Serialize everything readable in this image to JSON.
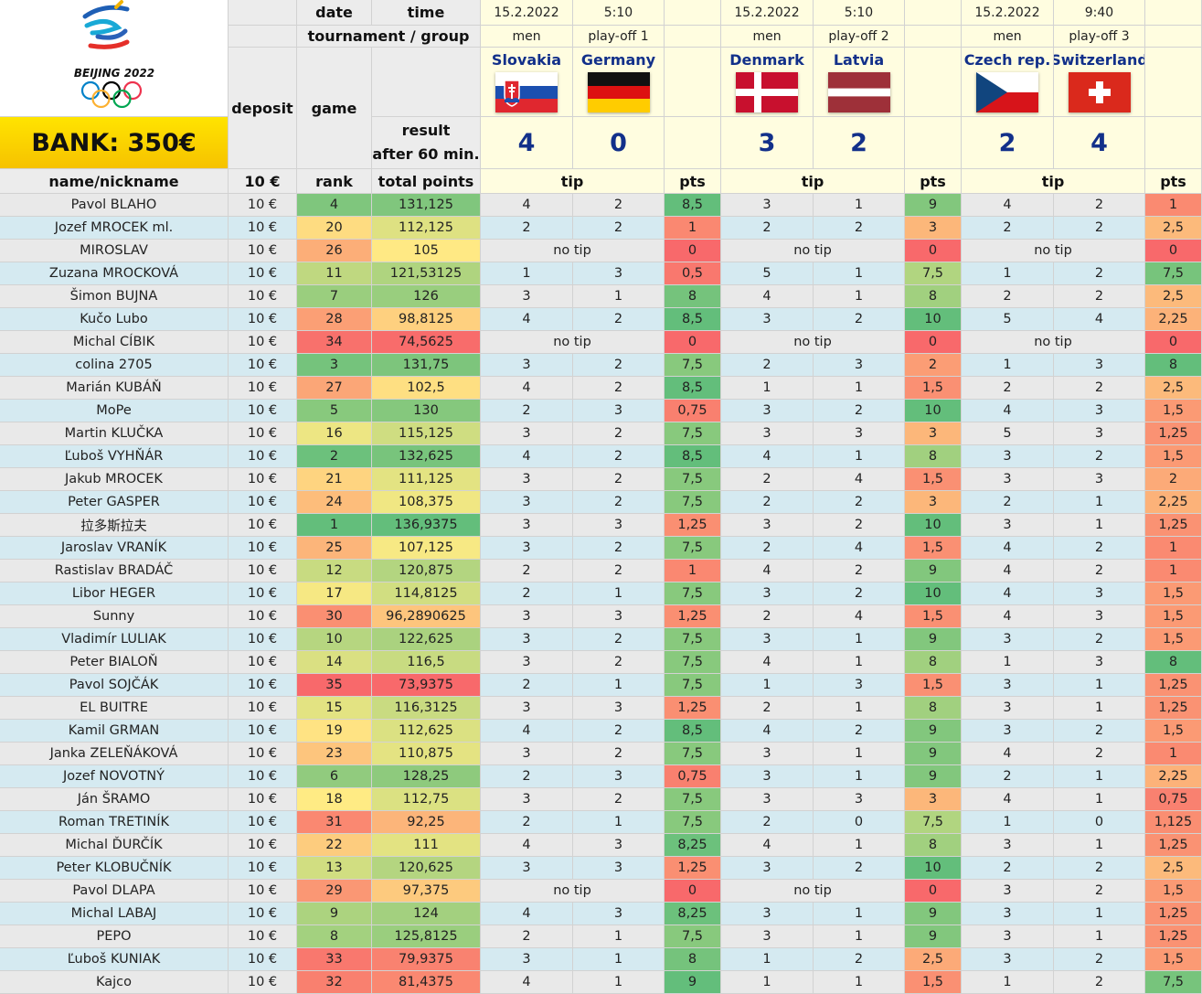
{
  "header": {
    "bank": "BANK: 350€",
    "date_label": "date",
    "time_label": "time",
    "tournament_label": "tournament / group",
    "deposit_label": "deposit",
    "game_label": "game",
    "result_label_1": "result",
    "result_label_2": "after 60 min.",
    "name_label": "name/nickname",
    "deposit_value": "10 €",
    "rank_label": "rank",
    "total_label": "total points",
    "tip_label": "tip",
    "pts_label": "pts"
  },
  "logo": {
    "name": "BEIJING 2022"
  },
  "matches": [
    {
      "date": "15.2.2022",
      "time": "5:10",
      "group": "men",
      "stage": "play-off 1",
      "team1": "Slovakia",
      "team2": "Germany",
      "score1": "4",
      "score2": "0"
    },
    {
      "date": "15.2.2022",
      "time": "5:10",
      "group": "men",
      "stage": "play-off 2",
      "team1": "Denmark",
      "team2": "Latvia",
      "score1": "3",
      "score2": "2"
    },
    {
      "date": "15.2.2022",
      "time": "9:40",
      "group": "men",
      "stage": "play-off 3",
      "team1": "Czech rep.",
      "team2": "Switzerland",
      "score1": "2",
      "score2": "4"
    }
  ],
  "no_tip": "no tip",
  "rows": [
    {
      "name": "Pavol BLAHO",
      "dep": "10 €",
      "rank": 4,
      "total": "131,125",
      "tips": [
        [
          "4",
          "2",
          "8,5"
        ],
        [
          "3",
          "1",
          "9"
        ],
        [
          "4",
          "2",
          "1"
        ]
      ]
    },
    {
      "name": "Jozef MROCEK ml.",
      "dep": "10 €",
      "rank": 20,
      "total": "112,125",
      "tips": [
        [
          "2",
          "2",
          "1"
        ],
        [
          "2",
          "2",
          "3"
        ],
        [
          "2",
          "2",
          "2,5"
        ]
      ]
    },
    {
      "name": "MIROSLAV",
      "dep": "10 €",
      "rank": 26,
      "total": "105",
      "tips": [
        null,
        null,
        null
      ],
      "pts": [
        "0",
        "0",
        "0"
      ]
    },
    {
      "name": "Zuzana MROCKOVÁ",
      "dep": "10 €",
      "rank": 11,
      "total": "121,53125",
      "tips": [
        [
          "1",
          "3",
          "0,5"
        ],
        [
          "5",
          "1",
          "7,5"
        ],
        [
          "1",
          "2",
          "7,5"
        ]
      ]
    },
    {
      "name": "Šimon BUJNA",
      "dep": "10 €",
      "rank": 7,
      "total": "126",
      "tips": [
        [
          "3",
          "1",
          "8"
        ],
        [
          "4",
          "1",
          "8"
        ],
        [
          "2",
          "2",
          "2,5"
        ]
      ]
    },
    {
      "name": "Kučo Lubo",
      "dep": "10 €",
      "rank": 28,
      "total": "98,8125",
      "tips": [
        [
          "4",
          "2",
          "8,5"
        ],
        [
          "3",
          "2",
          "10"
        ],
        [
          "5",
          "4",
          "2,25"
        ]
      ]
    },
    {
      "name": "Michal CÍBIK",
      "dep": "10 €",
      "rank": 34,
      "total": "74,5625",
      "tips": [
        null,
        null,
        null
      ],
      "pts": [
        "0",
        "0",
        "0"
      ]
    },
    {
      "name": "colina 2705",
      "dep": "10 €",
      "rank": 3,
      "total": "131,75",
      "tips": [
        [
          "3",
          "2",
          "7,5"
        ],
        [
          "2",
          "3",
          "2"
        ],
        [
          "1",
          "3",
          "8"
        ]
      ]
    },
    {
      "name": "Marián KUBÁŇ",
      "dep": "10 €",
      "rank": 27,
      "total": "102,5",
      "tips": [
        [
          "4",
          "2",
          "8,5"
        ],
        [
          "1",
          "1",
          "1,5"
        ],
        [
          "2",
          "2",
          "2,5"
        ]
      ]
    },
    {
      "name": "MoPe",
      "dep": "10 €",
      "rank": 5,
      "total": "130",
      "tips": [
        [
          "2",
          "3",
          "0,75"
        ],
        [
          "3",
          "2",
          "10"
        ],
        [
          "4",
          "3",
          "1,5"
        ]
      ]
    },
    {
      "name": "Martin KLUČKA",
      "dep": "10 €",
      "rank": 16,
      "total": "115,125",
      "tips": [
        [
          "3",
          "2",
          "7,5"
        ],
        [
          "3",
          "3",
          "3"
        ],
        [
          "5",
          "3",
          "1,25"
        ]
      ]
    },
    {
      "name": "Ľuboš VYHŇÁR",
      "dep": "10 €",
      "rank": 2,
      "total": "132,625",
      "tips": [
        [
          "4",
          "2",
          "8,5"
        ],
        [
          "4",
          "1",
          "8"
        ],
        [
          "3",
          "2",
          "1,5"
        ]
      ]
    },
    {
      "name": "Jakub MROCEK",
      "dep": "10 €",
      "rank": 21,
      "total": "111,125",
      "tips": [
        [
          "3",
          "2",
          "7,5"
        ],
        [
          "2",
          "4",
          "1,5"
        ],
        [
          "3",
          "3",
          "2"
        ]
      ]
    },
    {
      "name": "Peter GASPER",
      "dep": "10 €",
      "rank": 24,
      "total": "108,375",
      "tips": [
        [
          "3",
          "2",
          "7,5"
        ],
        [
          "2",
          "2",
          "3"
        ],
        [
          "2",
          "1",
          "2,25"
        ]
      ]
    },
    {
      "name": "拉多斯拉夫",
      "dep": "10 €",
      "rank": 1,
      "total": "136,9375",
      "tips": [
        [
          "3",
          "3",
          "1,25"
        ],
        [
          "3",
          "2",
          "10"
        ],
        [
          "3",
          "1",
          "1,25"
        ]
      ]
    },
    {
      "name": "Jaroslav VRANÍK",
      "dep": "10 €",
      "rank": 25,
      "total": "107,125",
      "tips": [
        [
          "3",
          "2",
          "7,5"
        ],
        [
          "2",
          "4",
          "1,5"
        ],
        [
          "4",
          "2",
          "1"
        ]
      ]
    },
    {
      "name": "Rastislav BRADÁČ",
      "dep": "10 €",
      "rank": 12,
      "total": "120,875",
      "tips": [
        [
          "2",
          "2",
          "1"
        ],
        [
          "4",
          "2",
          "9"
        ],
        [
          "4",
          "2",
          "1"
        ]
      ]
    },
    {
      "name": "Libor HEGER",
      "dep": "10 €",
      "rank": 17,
      "total": "114,8125",
      "tips": [
        [
          "2",
          "1",
          "7,5"
        ],
        [
          "3",
          "2",
          "10"
        ],
        [
          "4",
          "3",
          "1,5"
        ]
      ]
    },
    {
      "name": "Sunny",
      "dep": "10 €",
      "rank": 30,
      "total": "96,2890625",
      "tips": [
        [
          "3",
          "3",
          "1,25"
        ],
        [
          "2",
          "4",
          "1,5"
        ],
        [
          "4",
          "3",
          "1,5"
        ]
      ]
    },
    {
      "name": "Vladimír LULIAK",
      "dep": "10 €",
      "rank": 10,
      "total": "122,625",
      "tips": [
        [
          "3",
          "2",
          "7,5"
        ],
        [
          "3",
          "1",
          "9"
        ],
        [
          "3",
          "2",
          "1,5"
        ]
      ]
    },
    {
      "name": "Peter BIALOŇ",
      "dep": "10 €",
      "rank": 14,
      "total": "116,5",
      "tips": [
        [
          "3",
          "2",
          "7,5"
        ],
        [
          "4",
          "1",
          "8"
        ],
        [
          "1",
          "3",
          "8"
        ]
      ]
    },
    {
      "name": "Pavol SOJČÁK",
      "dep": "10 €",
      "rank": 35,
      "total": "73,9375",
      "tips": [
        [
          "2",
          "1",
          "7,5"
        ],
        [
          "1",
          "3",
          "1,5"
        ],
        [
          "3",
          "1",
          "1,25"
        ]
      ]
    },
    {
      "name": "EL BUITRE",
      "dep": "10 €",
      "rank": 15,
      "total": "116,3125",
      "tips": [
        [
          "3",
          "3",
          "1,25"
        ],
        [
          "2",
          "1",
          "8"
        ],
        [
          "3",
          "1",
          "1,25"
        ]
      ]
    },
    {
      "name": "Kamil GRMAN",
      "dep": "10 €",
      "rank": 19,
      "total": "112,625",
      "tips": [
        [
          "4",
          "2",
          "8,5"
        ],
        [
          "4",
          "2",
          "9"
        ],
        [
          "3",
          "2",
          "1,5"
        ]
      ]
    },
    {
      "name": "Janka ZELEŇÁKOVÁ",
      "dep": "10 €",
      "rank": 23,
      "total": "110,875",
      "tips": [
        [
          "3",
          "2",
          "7,5"
        ],
        [
          "3",
          "1",
          "9"
        ],
        [
          "4",
          "2",
          "1"
        ]
      ]
    },
    {
      "name": "Jozef NOVOTNÝ",
      "dep": "10 €",
      "rank": 6,
      "total": "128,25",
      "tips": [
        [
          "2",
          "3",
          "0,75"
        ],
        [
          "3",
          "1",
          "9"
        ],
        [
          "2",
          "1",
          "2,25"
        ]
      ]
    },
    {
      "name": "Ján ŠRAMO",
      "dep": "10 €",
      "rank": 18,
      "total": "112,75",
      "tips": [
        [
          "3",
          "2",
          "7,5"
        ],
        [
          "3",
          "3",
          "3"
        ],
        [
          "4",
          "1",
          "0,75"
        ]
      ]
    },
    {
      "name": "Roman TRETINÍK",
      "dep": "10 €",
      "rank": 31,
      "total": "92,25",
      "tips": [
        [
          "2",
          "1",
          "7,5"
        ],
        [
          "2",
          "0",
          "7,5"
        ],
        [
          "1",
          "0",
          "1,125"
        ]
      ]
    },
    {
      "name": "Michal ĎURČÍK",
      "dep": "10 €",
      "rank": 22,
      "total": "111",
      "tips": [
        [
          "4",
          "3",
          "8,25"
        ],
        [
          "4",
          "1",
          "8"
        ],
        [
          "3",
          "1",
          "1,25"
        ]
      ]
    },
    {
      "name": "Peter KLOBUČNÍK",
      "dep": "10 €",
      "rank": 13,
      "total": "120,625",
      "tips": [
        [
          "3",
          "3",
          "1,25"
        ],
        [
          "3",
          "2",
          "10"
        ],
        [
          "2",
          "2",
          "2,5"
        ]
      ]
    },
    {
      "name": "Pavol DLAPA",
      "dep": "10 €",
      "rank": 29,
      "total": "97,375",
      "tips": [
        null,
        null,
        [
          "3",
          "2",
          "1,5"
        ]
      ],
      "pts": [
        "0",
        "0",
        null
      ]
    },
    {
      "name": "Michal LABAJ",
      "dep": "10 €",
      "rank": 9,
      "total": "124",
      "tips": [
        [
          "4",
          "3",
          "8,25"
        ],
        [
          "3",
          "1",
          "9"
        ],
        [
          "3",
          "1",
          "1,25"
        ]
      ]
    },
    {
      "name": "PEPO",
      "dep": "10 €",
      "rank": 8,
      "total": "125,8125",
      "tips": [
        [
          "2",
          "1",
          "7,5"
        ],
        [
          "3",
          "1",
          "9"
        ],
        [
          "3",
          "1",
          "1,25"
        ]
      ]
    },
    {
      "name": "Ľuboš KUNIAK",
      "dep": "10 €",
      "rank": 33,
      "total": "79,9375",
      "tips": [
        [
          "3",
          "1",
          "8"
        ],
        [
          "1",
          "2",
          "2,5"
        ],
        [
          "3",
          "2",
          "1,5"
        ]
      ]
    },
    {
      "name": "Kajco",
      "dep": "10 €",
      "rank": 32,
      "total": "81,4375",
      "tips": [
        [
          "4",
          "1",
          "9"
        ],
        [
          "1",
          "1",
          "1,5"
        ],
        [
          "1",
          "2",
          "7,5"
        ]
      ]
    }
  ],
  "colors": {
    "header_gray": "#ececec",
    "match_yellow": "#fffde0",
    "team_blue": "#12308a",
    "row_gray": "#e9e9e9",
    "row_blue": "#d5eaf1",
    "bank_yellow": "#ffd800",
    "scale_green": "#63be7b",
    "scale_yellow": "#ffeb84",
    "scale_red": "#f8696b"
  },
  "icons": [
    "beijing-2022-logo",
    "olympic-rings-icon",
    "slovakia-flag-icon",
    "germany-flag-icon",
    "denmark-flag-icon",
    "latvia-flag-icon",
    "czech-flag-icon",
    "switzerland-flag-icon"
  ]
}
